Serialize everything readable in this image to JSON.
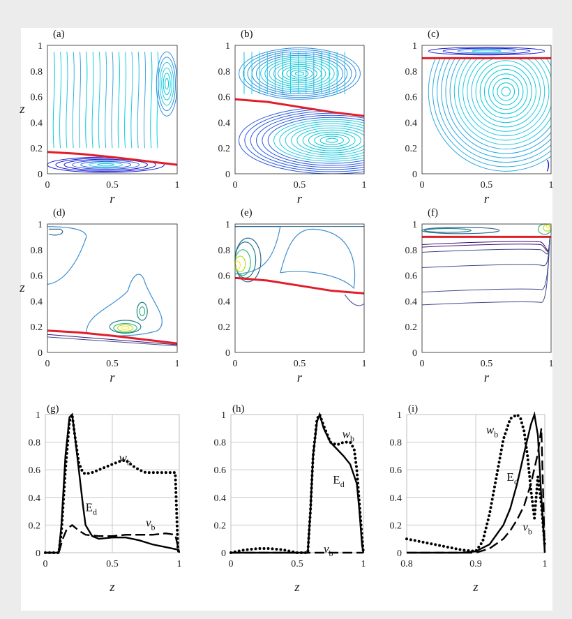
{
  "figure": {
    "panel_labels": [
      "(a)",
      "(b)",
      "(c)",
      "(d)",
      "(e)",
      "(f)",
      "(g)",
      "(h)",
      "(i)"
    ]
  },
  "chart_data": [
    {
      "id": "a",
      "type": "contour",
      "label": "(a)",
      "xlabel": "r",
      "ylabel": "z",
      "xlim": [
        0,
        1
      ],
      "ylim": [
        0,
        1
      ],
      "xticks": [
        "0",
        "0.5",
        "1"
      ],
      "yticks": [
        "0",
        "0.2",
        "0.4",
        "0.6",
        "0.8",
        "1"
      ],
      "interface": {
        "x": [
          0,
          0.25,
          0.5,
          0.75,
          1
        ],
        "y": [
          0.17,
          0.155,
          0.13,
          0.1,
          0.07
        ]
      },
      "vortex_center": {
        "r": 0.9,
        "z": 0.7
      }
    },
    {
      "id": "b",
      "type": "contour",
      "label": "(b)",
      "xlabel": "r",
      "ylabel": "",
      "xlim": [
        0,
        1
      ],
      "ylim": [
        0,
        1
      ],
      "xticks": [
        "0",
        "0.5",
        "1"
      ],
      "yticks": [
        "0",
        "0.2",
        "0.4",
        "0.6",
        "0.8",
        "1"
      ],
      "interface": {
        "x": [
          0,
          0.25,
          0.5,
          0.75,
          1
        ],
        "y": [
          0.58,
          0.56,
          0.52,
          0.48,
          0.45
        ]
      },
      "vortex_center": {
        "r": 0.75,
        "z": 0.26
      }
    },
    {
      "id": "c",
      "type": "contour",
      "label": "(c)",
      "xlabel": "r",
      "ylabel": "",
      "xlim": [
        0,
        1
      ],
      "ylim": [
        0,
        1
      ],
      "xticks": [
        "0",
        "0.5",
        "1"
      ],
      "yticks": [
        "0",
        "0.2",
        "0.4",
        "0.6",
        "0.8",
        "1"
      ],
      "interface": {
        "x": [
          0,
          0.5,
          1
        ],
        "y": [
          0.9,
          0.9,
          0.9
        ]
      },
      "vortex_center": {
        "r": 0.65,
        "z": 0.64
      }
    },
    {
      "id": "d",
      "type": "contour",
      "label": "(d)",
      "xlabel": "r",
      "ylabel": "z",
      "xlim": [
        0,
        1
      ],
      "ylim": [
        0,
        1
      ],
      "xticks": [
        "0",
        "0.5",
        "1"
      ],
      "yticks": [
        "0",
        "0.2",
        "0.4",
        "0.6",
        "0.8",
        "1"
      ],
      "interface": {
        "x": [
          0,
          0.25,
          0.5,
          0.75,
          1
        ],
        "y": [
          0.17,
          0.155,
          0.13,
          0.1,
          0.07
        ]
      }
    },
    {
      "id": "e",
      "type": "contour",
      "label": "(e)",
      "xlabel": "r",
      "ylabel": "",
      "xlim": [
        0,
        1
      ],
      "ylim": [
        0,
        1
      ],
      "xticks": [
        "0",
        "0.5",
        "1"
      ],
      "yticks": [
        "0",
        "0.2",
        "0.4",
        "0.6",
        "0.8",
        "1"
      ],
      "interface": {
        "x": [
          0,
          0.25,
          0.5,
          0.75,
          1
        ],
        "y": [
          0.58,
          0.56,
          0.52,
          0.48,
          0.46
        ]
      }
    },
    {
      "id": "f",
      "type": "contour",
      "label": "(f)",
      "xlabel": "r",
      "ylabel": "",
      "xlim": [
        0,
        1
      ],
      "ylim": [
        0,
        1
      ],
      "xticks": [
        "0",
        "0.5",
        "1"
      ],
      "yticks": [
        "0",
        "0.2",
        "0.4",
        "0.6",
        "0.8",
        "1"
      ],
      "interface": {
        "x": [
          0,
          0.5,
          1
        ],
        "y": [
          0.9,
          0.9,
          0.9
        ]
      }
    },
    {
      "id": "g",
      "type": "line",
      "label": "(g)",
      "xlabel": "z",
      "ylabel": "",
      "xlim": [
        0,
        1
      ],
      "ylim": [
        0,
        1
      ],
      "xticks": [
        "0",
        "0.5",
        "1"
      ],
      "yticks": [
        "0",
        "0.2",
        "0.4",
        "0.6",
        "0.8",
        "1"
      ],
      "grid": true,
      "series": [
        {
          "name": "wb",
          "style": "dotted",
          "x": [
            0,
            0.1,
            0.12,
            0.15,
            0.18,
            0.2,
            0.22,
            0.25,
            0.28,
            0.3,
            0.35,
            0.4,
            0.45,
            0.5,
            0.55,
            0.6,
            0.65,
            0.7,
            0.75,
            0.8,
            0.85,
            0.9,
            0.95,
            0.97,
            0.98,
            0.99,
            1
          ],
          "y": [
            0,
            0,
            0.15,
            0.6,
            0.95,
            1,
            0.85,
            0.65,
            0.58,
            0.57,
            0.58,
            0.6,
            0.62,
            0.64,
            0.66,
            0.67,
            0.63,
            0.6,
            0.58,
            0.58,
            0.58,
            0.58,
            0.58,
            0.58,
            0.3,
            0.02,
            0
          ]
        },
        {
          "name": "Ed",
          "style": "solid",
          "x": [
            0,
            0.1,
            0.12,
            0.15,
            0.18,
            0.2,
            0.22,
            0.25,
            0.28,
            0.3,
            0.35,
            0.4,
            0.5,
            0.6,
            0.7,
            0.8,
            0.9,
            0.95,
            1
          ],
          "y": [
            0,
            0,
            0.2,
            0.7,
            0.98,
            1,
            0.85,
            0.6,
            0.35,
            0.2,
            0.12,
            0.1,
            0.11,
            0.11,
            0.09,
            0.06,
            0.04,
            0.03,
            0.02
          ]
        },
        {
          "name": "vb",
          "style": "dashed",
          "x": [
            0,
            0.1,
            0.13,
            0.16,
            0.2,
            0.25,
            0.3,
            0.4,
            0.5,
            0.6,
            0.7,
            0.8,
            0.9,
            0.97,
            1
          ],
          "y": [
            0,
            0,
            0.1,
            0.17,
            0.2,
            0.16,
            0.13,
            0.12,
            0.12,
            0.13,
            0.13,
            0.13,
            0.14,
            0.13,
            0
          ]
        }
      ],
      "series_labels": [
        {
          "name": "wb",
          "base": "w",
          "sub": "b",
          "at": {
            "x": 0.55,
            "y": 0.66
          }
        },
        {
          "name": "Ed",
          "base": "E",
          "sub": "d",
          "at": {
            "x": 0.3,
            "y": 0.3
          }
        },
        {
          "name": "vb",
          "base": "v",
          "sub": "b",
          "at": {
            "x": 0.75,
            "y": 0.19
          }
        }
      ]
    },
    {
      "id": "h",
      "type": "line",
      "label": "(h)",
      "xlabel": "z",
      "ylabel": "",
      "xlim": [
        0,
        1
      ],
      "ylim": [
        0,
        1
      ],
      "xticks": [
        "0",
        "0.5",
        "1"
      ],
      "yticks": [
        "0",
        "0.2",
        "0.4",
        "0.6",
        "0.8",
        "1"
      ],
      "grid": true,
      "series": [
        {
          "name": "wb",
          "style": "dotted",
          "x": [
            0,
            0.05,
            0.1,
            0.15,
            0.2,
            0.25,
            0.3,
            0.35,
            0.4,
            0.45,
            0.5,
            0.55,
            0.58,
            0.6,
            0.62,
            0.65,
            0.67,
            0.7,
            0.75,
            0.8,
            0.85,
            0.9,
            0.93,
            0.95,
            0.97,
            0.99,
            1
          ],
          "y": [
            0,
            0.01,
            0.02,
            0.025,
            0.03,
            0.03,
            0.03,
            0.025,
            0.02,
            0.01,
            0,
            0,
            0,
            0.3,
            0.7,
            0.97,
            1,
            0.92,
            0.8,
            0.78,
            0.8,
            0.8,
            0.75,
            0.6,
            0.35,
            0.1,
            0
          ]
        },
        {
          "name": "Ed",
          "style": "solid",
          "x": [
            0,
            0.5,
            0.58,
            0.6,
            0.62,
            0.65,
            0.67,
            0.7,
            0.75,
            0.8,
            0.85,
            0.9,
            0.95,
            0.97,
            0.99,
            1
          ],
          "y": [
            0,
            0,
            0,
            0.3,
            0.7,
            0.95,
            1,
            0.9,
            0.8,
            0.75,
            0.7,
            0.64,
            0.5,
            0.3,
            0.05,
            0
          ]
        },
        {
          "name": "vb",
          "style": "dashed",
          "x": [
            0,
            0.5,
            0.6,
            0.7,
            0.8,
            0.9,
            1
          ],
          "y": [
            0,
            0,
            0,
            0,
            0,
            0,
            0
          ]
        }
      ],
      "series_labels": [
        {
          "name": "wb",
          "base": "w",
          "sub": "b",
          "at": {
            "x": 0.84,
            "y": 0.83
          }
        },
        {
          "name": "Ed",
          "base": "E",
          "sub": "d",
          "at": {
            "x": 0.77,
            "y": 0.5
          }
        },
        {
          "name": "vb",
          "base": "v",
          "sub": "b",
          "at": {
            "x": 0.7,
            "y": 0.0
          }
        }
      ]
    },
    {
      "id": "i",
      "type": "line",
      "label": "(i)",
      "xlabel": "z",
      "ylabel": "",
      "xlim": [
        0.8,
        1
      ],
      "ylim": [
        0,
        1
      ],
      "xticks": [
        "0.8",
        "0.9",
        "1"
      ],
      "yticks": [
        "0",
        "0.2",
        "0.4",
        "0.6",
        "0.8",
        "1"
      ],
      "grid": true,
      "series": [
        {
          "name": "wb",
          "style": "dotted",
          "x": [
            0.8,
            0.82,
            0.84,
            0.86,
            0.88,
            0.9,
            0.91,
            0.92,
            0.93,
            0.94,
            0.95,
            0.96,
            0.965,
            0.97,
            0.975,
            0.98,
            0.985,
            0.99,
            0.995,
            1
          ],
          "y": [
            0.1,
            0.08,
            0.06,
            0.04,
            0.02,
            0.01,
            0.08,
            0.28,
            0.55,
            0.82,
            0.97,
            1,
            0.97,
            0.88,
            0.7,
            0.45,
            0.25,
            0.55,
            0.35,
            0.05
          ]
        },
        {
          "name": "Ed",
          "style": "solid",
          "x": [
            0.8,
            0.88,
            0.9,
            0.92,
            0.94,
            0.95,
            0.96,
            0.97,
            0.98,
            0.985,
            0.99,
            0.995,
            1
          ],
          "y": [
            0,
            0,
            0.01,
            0.06,
            0.2,
            0.32,
            0.5,
            0.72,
            0.93,
            1,
            0.85,
            0.4,
            0
          ]
        },
        {
          "name": "vb",
          "style": "dashed",
          "x": [
            0.8,
            0.88,
            0.9,
            0.92,
            0.94,
            0.95,
            0.96,
            0.97,
            0.98,
            0.99,
            0.995,
            1
          ],
          "y": [
            0,
            0,
            0,
            0.03,
            0.1,
            0.16,
            0.24,
            0.34,
            0.5,
            0.72,
            0.9,
            0
          ]
        }
      ],
      "series_labels": [
        {
          "name": "wb",
          "base": "w",
          "sub": "b",
          "at": {
            "x": 0.915,
            "y": 0.86
          }
        },
        {
          "name": "Ed",
          "base": "E",
          "sub": "d",
          "at": {
            "x": 0.945,
            "y": 0.52
          }
        },
        {
          "name": "vb",
          "base": "v",
          "sub": "b",
          "at": {
            "x": 0.968,
            "y": 0.16
          }
        }
      ]
    }
  ]
}
